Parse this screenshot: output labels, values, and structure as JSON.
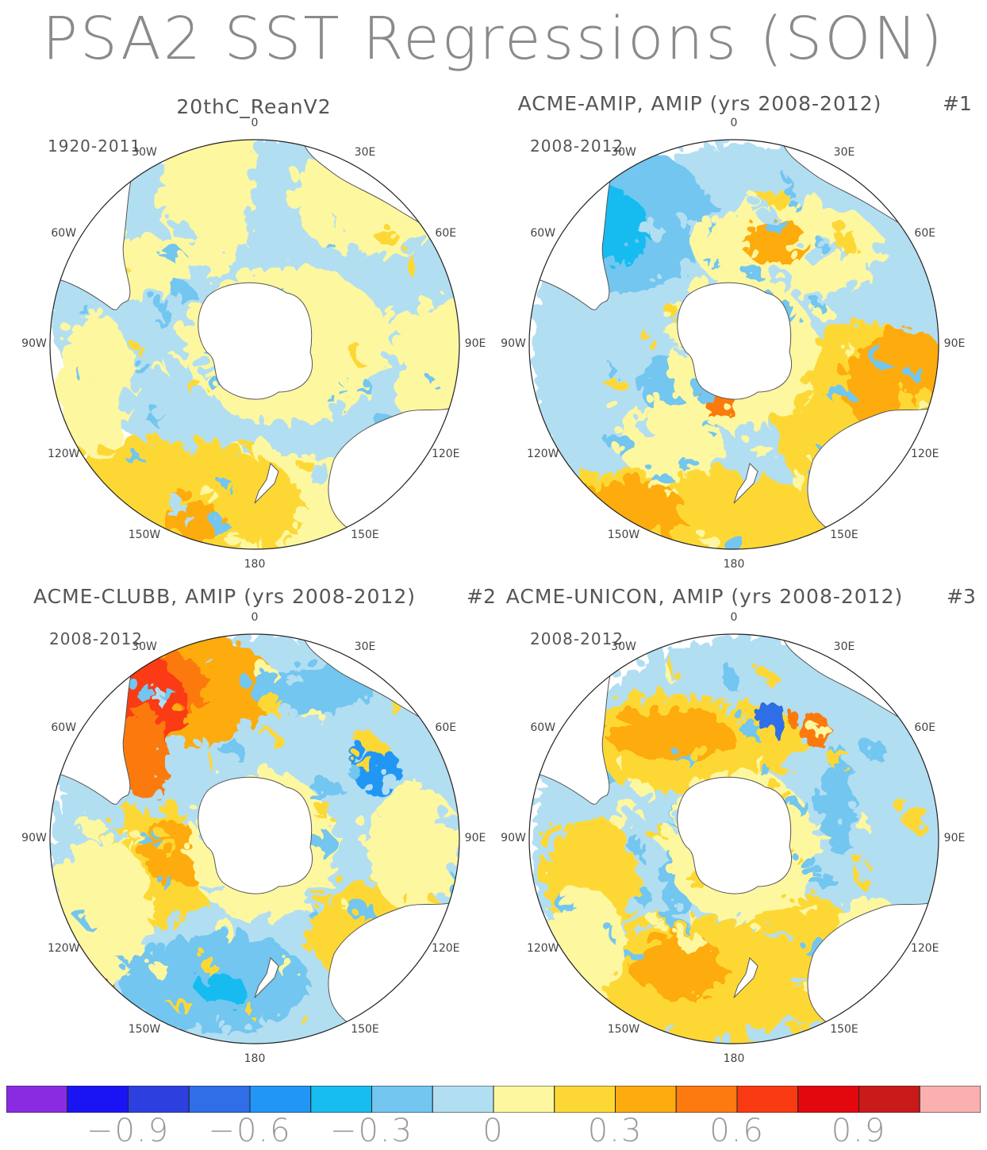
{
  "title": "PSA2 SST Regressions (SON)",
  "colors": {
    "land": "#ffffff",
    "coast": "#555555",
    "levels": [
      "#8a2be2",
      "#1a14f5",
      "#2e3fe0",
      "#2f6ee6",
      "#2296f5",
      "#17bcf0",
      "#72c6ef",
      "#b2def2",
      "#fdf7a0",
      "#fdd835",
      "#fdab0f",
      "#fc7a10",
      "#fa3a12",
      "#e3080e",
      "#c91a1a",
      "#fbb0b0"
    ]
  },
  "chart_data": [
    {
      "type": "heatmap",
      "projection": "south-polar-stereographic",
      "title": "20thC_ReanV2",
      "panel_number": "",
      "years": "1920-2011",
      "lon_labels": [
        "0",
        "30E",
        "60E",
        "90E",
        "120E",
        "150E",
        "180",
        "150W",
        "120W",
        "90W",
        "60W",
        "30W"
      ],
      "regions": [
        {
          "feature": "Atlantic / Indian sector",
          "sign": "weak negative",
          "level": "0 to -0.15"
        },
        {
          "feature": "South Pacific (150W-180)",
          "sign": "positive",
          "level": "0.15 to 0.3"
        },
        {
          "feature": "Antarctic coastal ring",
          "sign": "weak positive",
          "level": "0 to 0.15"
        }
      ]
    },
    {
      "type": "heatmap",
      "projection": "south-polar-stereographic",
      "title": "ACME-AMIP, AMIP (yrs 2008-2012)",
      "panel_number": "#1",
      "years": "2008-2012",
      "lon_labels": [
        "0",
        "30E",
        "60E",
        "90E",
        "120E",
        "150E",
        "180",
        "150W",
        "120W",
        "90W",
        "60W",
        "30W"
      ],
      "regions": [
        {
          "feature": "South Atlantic (30W-60W)",
          "sign": "negative",
          "level": "-0.15 to -0.45"
        },
        {
          "feature": "Indian Ocean (60E-120E)",
          "sign": "positive",
          "level": "0.15 to 0.45"
        },
        {
          "feature": "South Pacific (120W-180)",
          "sign": "positive",
          "level": "0.15 to 0.45"
        }
      ]
    },
    {
      "type": "heatmap",
      "projection": "south-polar-stereographic",
      "title": "ACME-CLUBB, AMIP (yrs 2008-2012)",
      "panel_number": "#2",
      "years": "2008-2012",
      "lon_labels": [
        "0",
        "30E",
        "60E",
        "90E",
        "120E",
        "150E",
        "180",
        "150W",
        "120W",
        "90W",
        "60W",
        "30W"
      ],
      "regions": [
        {
          "feature": "South Atlantic (30W-60W)",
          "sign": "positive",
          "level": "0.3 to 0.6"
        },
        {
          "feature": "Pacific sector near 180",
          "sign": "negative",
          "level": "-0.15 to -0.45"
        },
        {
          "feature": "Southwest Pacific (90W-120W)",
          "sign": "positive",
          "level": "0.15 to 0.45"
        }
      ]
    },
    {
      "type": "heatmap",
      "projection": "south-polar-stereographic",
      "title": "ACME-UNICON, AMIP (yrs 2008-2012)",
      "panel_number": "#3",
      "years": "2008-2012",
      "lon_labels": [
        "0",
        "30E",
        "60E",
        "90E",
        "120E",
        "150E",
        "180",
        "150W",
        "120W",
        "90W",
        "60W",
        "30W"
      ],
      "regions": [
        {
          "feature": "South Atlantic (30W-60W)",
          "sign": "positive",
          "level": "0.15 to 0.45"
        },
        {
          "feature": "Southeast Pacific (90W)",
          "sign": "negative",
          "level": "-0.15 to -0.3"
        },
        {
          "feature": "Tasman region (150E)",
          "sign": "positive",
          "level": "0.15 to 0.3"
        }
      ]
    }
  ],
  "colorbar": {
    "levels": 16,
    "ticks": [
      "−0.9",
      "−0.6",
      "−0.3",
      "0",
      "0.3",
      "0.6",
      "0.9"
    ],
    "tick_values": [
      -0.9,
      -0.6,
      -0.3,
      0,
      0.3,
      0.6,
      0.9
    ],
    "range": [
      -1.2,
      1.2
    ]
  }
}
